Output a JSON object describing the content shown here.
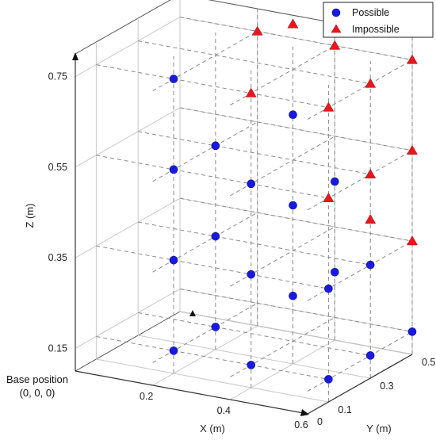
{
  "chart_data": {
    "type": "scatter",
    "projection": "3d",
    "title": "",
    "xlabel": "X (m)",
    "ylabel": "Y (m)",
    "zlabel": "Z (m)",
    "xlim": [
      0,
      0.6
    ],
    "ylim": [
      0,
      0.5
    ],
    "zlim": [
      0.1,
      0.8
    ],
    "x_ticks": [
      0.2,
      0.4,
      0.6
    ],
    "y_ticks": [
      0,
      0.1,
      0.3,
      0.5
    ],
    "z_ticks": [
      0.15,
      0.35,
      0.55,
      0.75
    ],
    "grid": true,
    "legend_position": "top-right",
    "annotation": {
      "line1": "Base position",
      "line2": "(0, 0, 0)"
    },
    "series": [
      {
        "name": "Possible",
        "marker": "circle",
        "color": "#1a1adf",
        "points": [
          {
            "x": 0.2,
            "y": 0.1,
            "z": 0.75
          },
          {
            "x": 0.2,
            "y": 0.1,
            "z": 0.55
          },
          {
            "x": 0.2,
            "y": 0.1,
            "z": 0.35
          },
          {
            "x": 0.2,
            "y": 0.1,
            "z": 0.15
          },
          {
            "x": 0.2,
            "y": 0.3,
            "z": 0.55
          },
          {
            "x": 0.2,
            "y": 0.3,
            "z": 0.35
          },
          {
            "x": 0.2,
            "y": 0.3,
            "z": 0.15
          },
          {
            "x": 0.4,
            "y": 0.1,
            "z": 0.55
          },
          {
            "x": 0.4,
            "y": 0.1,
            "z": 0.35
          },
          {
            "x": 0.4,
            "y": 0.1,
            "z": 0.15
          },
          {
            "x": 0.4,
            "y": 0.3,
            "z": 0.65
          },
          {
            "x": 0.4,
            "y": 0.3,
            "z": 0.45
          },
          {
            "x": 0.4,
            "y": 0.3,
            "z": 0.25
          },
          {
            "x": 0.4,
            "y": 0.5,
            "z": 0.45
          },
          {
            "x": 0.4,
            "y": 0.5,
            "z": 0.25
          },
          {
            "x": 0.6,
            "y": 0.1,
            "z": 0.15
          },
          {
            "x": 0.6,
            "y": 0.1,
            "z": 0.35
          },
          {
            "x": 0.6,
            "y": 0.3,
            "z": 0.15
          },
          {
            "x": 0.6,
            "y": 0.3,
            "z": 0.35
          },
          {
            "x": 0.6,
            "y": 0.5,
            "z": 0.15
          }
        ]
      },
      {
        "name": "Impossible",
        "marker": "triangle",
        "color": "#e8171d",
        "points": [
          {
            "x": 0.2,
            "y": 0.5,
            "z": 0.75
          },
          {
            "x": 0.4,
            "y": 0.5,
            "z": 0.75
          },
          {
            "x": 0.4,
            "y": 0.1,
            "z": 0.75
          },
          {
            "x": 0.4,
            "y": 0.3,
            "z": 0.85
          },
          {
            "x": 0.6,
            "y": 0.1,
            "z": 0.55
          },
          {
            "x": 0.6,
            "y": 0.3,
            "z": 0.55
          },
          {
            "x": 0.6,
            "y": 0.5,
            "z": 0.55
          },
          {
            "x": 0.6,
            "y": 0.1,
            "z": 0.75
          },
          {
            "x": 0.6,
            "y": 0.3,
            "z": 0.75
          },
          {
            "x": 0.6,
            "y": 0.5,
            "z": 0.75
          },
          {
            "x": 0.6,
            "y": 0.5,
            "z": 0.85
          },
          {
            "x": 0.6,
            "y": 0.5,
            "z": 0.35
          },
          {
            "x": 0.6,
            "y": 0.3,
            "z": 0.45
          }
        ]
      }
    ]
  }
}
